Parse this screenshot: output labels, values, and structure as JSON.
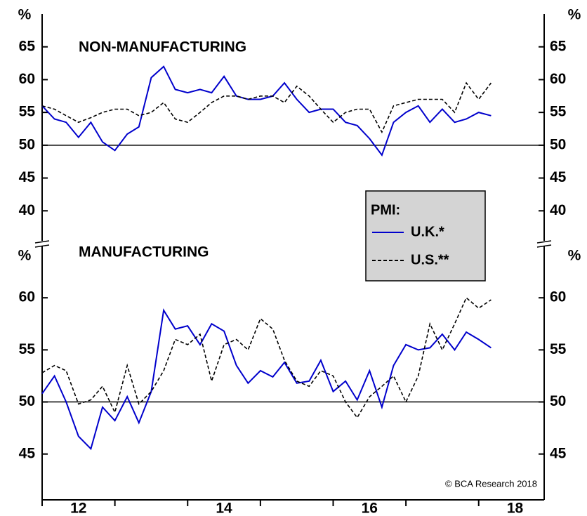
{
  "chart_data": [
    {
      "type": "line",
      "title": "NON-MANUFACTURING",
      "y_unit": "%",
      "x": [
        2012.0,
        2012.17,
        2012.33,
        2012.5,
        2012.67,
        2012.83,
        2013.0,
        2013.17,
        2013.33,
        2013.5,
        2013.67,
        2013.83,
        2014.0,
        2014.17,
        2014.33,
        2014.5,
        2014.67,
        2014.83,
        2015.0,
        2015.17,
        2015.33,
        2015.5,
        2015.67,
        2015.83,
        2016.0,
        2016.17,
        2016.33,
        2016.5,
        2016.67,
        2016.83,
        2017.0,
        2017.17,
        2017.33,
        2017.5,
        2017.67,
        2017.83,
        2018.0,
        2018.17
      ],
      "series": [
        {
          "name": "U.K.*",
          "color": "#0000cc",
          "style": "solid",
          "values": [
            56,
            54,
            53.5,
            51.2,
            53.5,
            50.5,
            49.2,
            51.7,
            52.8,
            60.3,
            62,
            58.5,
            58,
            58.5,
            58,
            60.5,
            57.5,
            57,
            57,
            57.5,
            59.5,
            57,
            55,
            55.5,
            55.5,
            53.5,
            53,
            51,
            48.5,
            53.5,
            55,
            56,
            53.5,
            55.5,
            53.5,
            54,
            55,
            54.5
          ]
        },
        {
          "name": "U.S.**",
          "color": "#000000",
          "style": "dashed",
          "values": [
            56,
            55.5,
            54.5,
            53.5,
            54.2,
            55,
            55.5,
            55.5,
            54.5,
            55,
            56.5,
            54,
            53.5,
            55,
            56.5,
            57.5,
            57.5,
            57,
            57.5,
            57.5,
            56.5,
            59,
            57.5,
            55.5,
            53.5,
            55,
            55.5,
            55.5,
            52,
            56,
            56.5,
            57,
            57,
            57,
            55,
            59.5,
            57,
            59.5
          ]
        }
      ],
      "legend_title": "PMI:",
      "xlim": [
        2012,
        2018.9
      ],
      "ylim": [
        35,
        70
      ],
      "yticks": [
        40,
        45,
        50,
        55,
        60,
        65
      ],
      "hline": 50
    },
    {
      "type": "line",
      "title": "MANUFACTURING",
      "y_unit": "%",
      "x": [
        2012.0,
        2012.17,
        2012.33,
        2012.5,
        2012.67,
        2012.83,
        2013.0,
        2013.17,
        2013.33,
        2013.5,
        2013.67,
        2013.83,
        2014.0,
        2014.17,
        2014.33,
        2014.5,
        2014.67,
        2014.83,
        2015.0,
        2015.17,
        2015.33,
        2015.5,
        2015.67,
        2015.83,
        2016.0,
        2016.17,
        2016.33,
        2016.5,
        2016.67,
        2016.83,
        2017.0,
        2017.17,
        2017.33,
        2017.5,
        2017.67,
        2017.83,
        2018.0,
        2018.17
      ],
      "series": [
        {
          "name": "U.K.*",
          "color": "#0000cc",
          "style": "solid",
          "values": [
            50.8,
            52.5,
            50,
            46.7,
            45.5,
            49.5,
            48.2,
            50.5,
            48,
            51,
            58.8,
            57,
            57.3,
            55.5,
            57.5,
            56.8,
            53.5,
            51.8,
            53,
            52.4,
            53.8,
            51.8,
            52,
            54,
            51,
            52,
            50.2,
            53,
            49.5,
            53.5,
            55.5,
            55,
            55.2,
            56.5,
            55,
            56.7,
            56,
            55.2
          ]
        },
        {
          "name": "U.S.**",
          "color": "#000000",
          "style": "dashed",
          "values": [
            52.8,
            53.5,
            53,
            49.8,
            50.2,
            51.5,
            49,
            53.5,
            49.8,
            51,
            53,
            56,
            55.5,
            56.5,
            52,
            55.5,
            56,
            55,
            58,
            57,
            54,
            52,
            51.5,
            53,
            52.5,
            50,
            48.5,
            50.5,
            51.5,
            52.5,
            50,
            52.5,
            57.5,
            55,
            57.5,
            60,
            59,
            59.8
          ]
        }
      ],
      "note": "© BCA Research 2018",
      "xlim": [
        2012,
        2018.9
      ],
      "ylim": [
        40.6,
        65
      ],
      "yticks": [
        45,
        50,
        55,
        60
      ],
      "hline": 50,
      "xticks": [
        {
          "value": 2012.5,
          "label": "12"
        },
        {
          "value": 2014.5,
          "label": "14"
        },
        {
          "value": 2016.5,
          "label": "16"
        },
        {
          "value": 2018.5,
          "label": "18"
        }
      ],
      "x_minor_ticks": [
        2012,
        2013,
        2014,
        2015,
        2016,
        2017,
        2018
      ]
    }
  ]
}
